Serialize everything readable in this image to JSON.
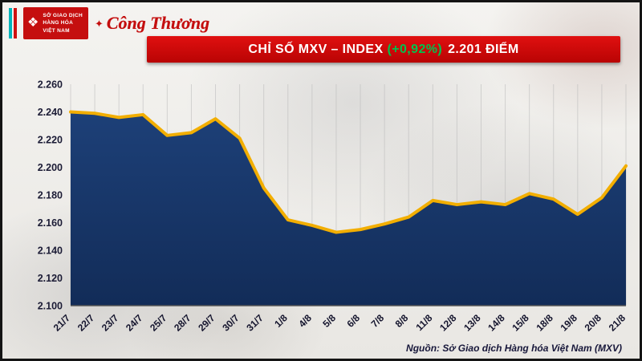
{
  "header": {
    "mxv_logo": {
      "lines": [
        "SỞ GIAO DỊCH",
        "HÀNG HÓA",
        "VIỆT NAM"
      ]
    },
    "congthuong_logo": "Công Thương",
    "title": {
      "prefix": "CHỈ SỐ MXV – INDEX",
      "change": "(+0,92%)",
      "suffix": "2.201 ĐIỂM"
    }
  },
  "chart_data": {
    "type": "area",
    "title": "CHỈ SỐ MXV – INDEX (+0,92%) 2.201 ĐIỂM",
    "x": [
      "21/7",
      "22/7",
      "23/7",
      "24/7",
      "25/7",
      "28/7",
      "29/7",
      "30/7",
      "31/7",
      "1/8",
      "4/8",
      "5/8",
      "6/8",
      "7/8",
      "8/8",
      "11/8",
      "12/8",
      "13/8",
      "14/8",
      "15/8",
      "18/8",
      "19/8",
      "20/8",
      "21/8"
    ],
    "values": [
      2.24,
      2.239,
      2.236,
      2.238,
      2.223,
      2.225,
      2.235,
      2.221,
      2.185,
      2.162,
      2.158,
      2.153,
      2.155,
      2.159,
      2.164,
      2.176,
      2.173,
      2.175,
      2.173,
      2.181,
      2.177,
      2.166,
      2.178,
      2.201
    ],
    "ylim": [
      2.1,
      2.26
    ],
    "yticks": [
      2.1,
      2.12,
      2.14,
      2.16,
      2.18,
      2.2,
      2.22,
      2.24,
      2.26
    ],
    "ytick_labels": [
      "2.100",
      "2.120",
      "2.140",
      "2.160",
      "2.180",
      "2.200",
      "2.220",
      "2.240",
      "2.260"
    ],
    "grid": "vertical",
    "legend": "none",
    "line_color": "#f2ae00",
    "fill_top": "#1d4078",
    "fill_bottom": "#122c58",
    "grid_color": "#b9b9b9"
  },
  "source": "Nguồn: Sở Giao dịch Hàng hóa Việt Nam (MXV)"
}
